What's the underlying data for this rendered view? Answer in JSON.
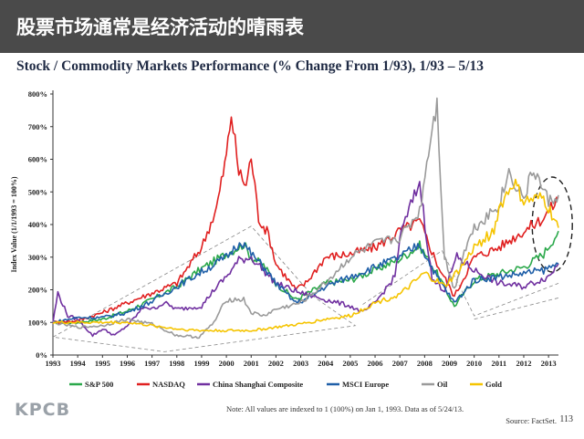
{
  "header": {
    "title": "股票市场通常是经济活动的晴雨表"
  },
  "chart_data": {
    "type": "line",
    "title": "Stock / Commodity Markets Performance (% Change From 1/93), 1/93 – 5/13",
    "ylabel": "Index Value (1/1/1993 = 100%)",
    "xlabel": "",
    "ylim": [
      0,
      800
    ],
    "y_ticks": [
      "0%",
      "100%",
      "200%",
      "300%",
      "400%",
      "500%",
      "600%",
      "700%",
      "800%"
    ],
    "x_ticks": [
      "1993",
      "1994",
      "1995",
      "1996",
      "1997",
      "1998",
      "1999",
      "2000",
      "2001",
      "2002",
      "2003",
      "2004",
      "2005",
      "2006",
      "2007",
      "2008",
      "2009",
      "2010",
      "2011",
      "2012",
      "2013"
    ],
    "x_range": [
      1993,
      2013.4
    ],
    "series": [
      {
        "name": "S&P 500",
        "color": "#2aa84a",
        "x": [
          1993,
          1994,
          1995,
          1996,
          1997,
          1998,
          1999,
          2000,
          2000.7,
          2001,
          2001.5,
          2002,
          2002.8,
          2003.2,
          2004,
          2005,
          2006,
          2007,
          2007.8,
          2008.5,
          2009.2,
          2010,
          2011,
          2012,
          2012.8,
          2013.4
        ],
        "y": [
          100,
          100,
          110,
          135,
          170,
          210,
          265,
          310,
          340,
          300,
          275,
          220,
          170,
          185,
          220,
          230,
          260,
          295,
          335,
          250,
          150,
          230,
          250,
          270,
          310,
          380
        ]
      },
      {
        "name": "NASDAQ",
        "color": "#e02020",
        "x": [
          1993,
          1994,
          1995,
          1996,
          1997,
          1998,
          1999,
          1999.6,
          2000,
          2000.2,
          2000.5,
          2000.8,
          2001,
          2001.3,
          2001.7,
          2002,
          2002.8,
          2003.2,
          2004,
          2005,
          2006,
          2007,
          2007.8,
          2008.5,
          2009.2,
          2010,
          2011,
          2012,
          2012.8,
          2013.4
        ],
        "y": [
          100,
          105,
          130,
          160,
          190,
          220,
          330,
          450,
          610,
          740,
          560,
          520,
          610,
          420,
          370,
          280,
          200,
          220,
          300,
          310,
          330,
          380,
          410,
          280,
          180,
          300,
          330,
          380,
          420,
          480
        ]
      },
      {
        "name": "China Shanghai Composite",
        "color": "#7030a0",
        "x": [
          1993,
          1993.2,
          1993.6,
          1994,
          1994.6,
          1995,
          1995.5,
          1996,
          1996.7,
          1997,
          1997.5,
          1998,
          1999,
          1999.5,
          2000,
          2000.5,
          2001,
          2001.5,
          2002,
          2003,
          2004,
          2005,
          2005.5,
          2006,
          2006.8,
          2007,
          2007.3,
          2007.8,
          2008.3,
          2008.8,
          2009.3,
          2010,
          2011,
          2012,
          2013,
          2013.4
        ],
        "y": [
          100,
          190,
          120,
          110,
          60,
          80,
          60,
          90,
          150,
          140,
          160,
          140,
          150,
          200,
          240,
          290,
          300,
          260,
          220,
          190,
          170,
          150,
          130,
          160,
          240,
          360,
          430,
          530,
          230,
          200,
          300,
          260,
          220,
          210,
          240,
          280
        ]
      },
      {
        "name": "MSCI Europe",
        "color": "#1f5fa8",
        "x": [
          1993,
          1994,
          1995,
          1996,
          1997,
          1998,
          1999,
          2000,
          2000.6,
          2001,
          2001.5,
          2002,
          2002.8,
          2003.2,
          2004,
          2005,
          2006,
          2007,
          2007.8,
          2008.5,
          2009.2,
          2010,
          2011,
          2012,
          2012.8,
          2013.4
        ],
        "y": [
          100,
          115,
          115,
          130,
          165,
          210,
          255,
          300,
          350,
          310,
          270,
          220,
          160,
          170,
          210,
          240,
          270,
          300,
          340,
          240,
          160,
          230,
          240,
          250,
          260,
          280
        ]
      },
      {
        "name": "Oil",
        "color": "#9a9a9a",
        "x": [
          1993,
          1994,
          1995,
          1996,
          1997,
          1998,
          1998.9,
          1999.5,
          2000,
          2000.7,
          2001,
          2001.5,
          2002,
          2003,
          2004,
          2005,
          2006,
          2007,
          2007.8,
          2008.3,
          2008.5,
          2008.8,
          2009.2,
          2009.6,
          2010,
          2011,
          2011.4,
          2012,
          2012.4,
          2013,
          2013.4
        ],
        "y": [
          100,
          85,
          90,
          110,
          95,
          60,
          55,
          100,
          170,
          170,
          130,
          120,
          140,
          160,
          220,
          300,
          340,
          360,
          440,
          700,
          770,
          300,
          200,
          320,
          390,
          460,
          560,
          480,
          570,
          470,
          490
        ]
      },
      {
        "name": "Gold",
        "color": "#f5c400",
        "x": [
          1993,
          1994,
          1995,
          1996,
          1997,
          1998,
          1999,
          2000,
          2001,
          2002,
          2003,
          2004,
          2005,
          2006,
          2007,
          2008,
          2008.8,
          2009.5,
          2010,
          2010.8,
          2011,
          2011.6,
          2012,
          2012.8,
          2013,
          2013.4
        ],
        "y": [
          100,
          100,
          100,
          100,
          90,
          80,
          75,
          75,
          75,
          85,
          95,
          110,
          120,
          160,
          185,
          250,
          210,
          270,
          330,
          380,
          450,
          530,
          470,
          480,
          450,
          390
        ]
      }
    ]
  },
  "legend": [
    "S&P 500",
    "NASDAQ",
    "China Shanghai Composite",
    "MSCI Europe",
    "Oil",
    "Gold"
  ],
  "footer": {
    "brand": "KPCB",
    "note": "Note: All values are indexed to 1 (100%) on Jan 1, 1993. Data as of 5/24/13.",
    "source": "Source: FactSet.",
    "page": "113"
  }
}
